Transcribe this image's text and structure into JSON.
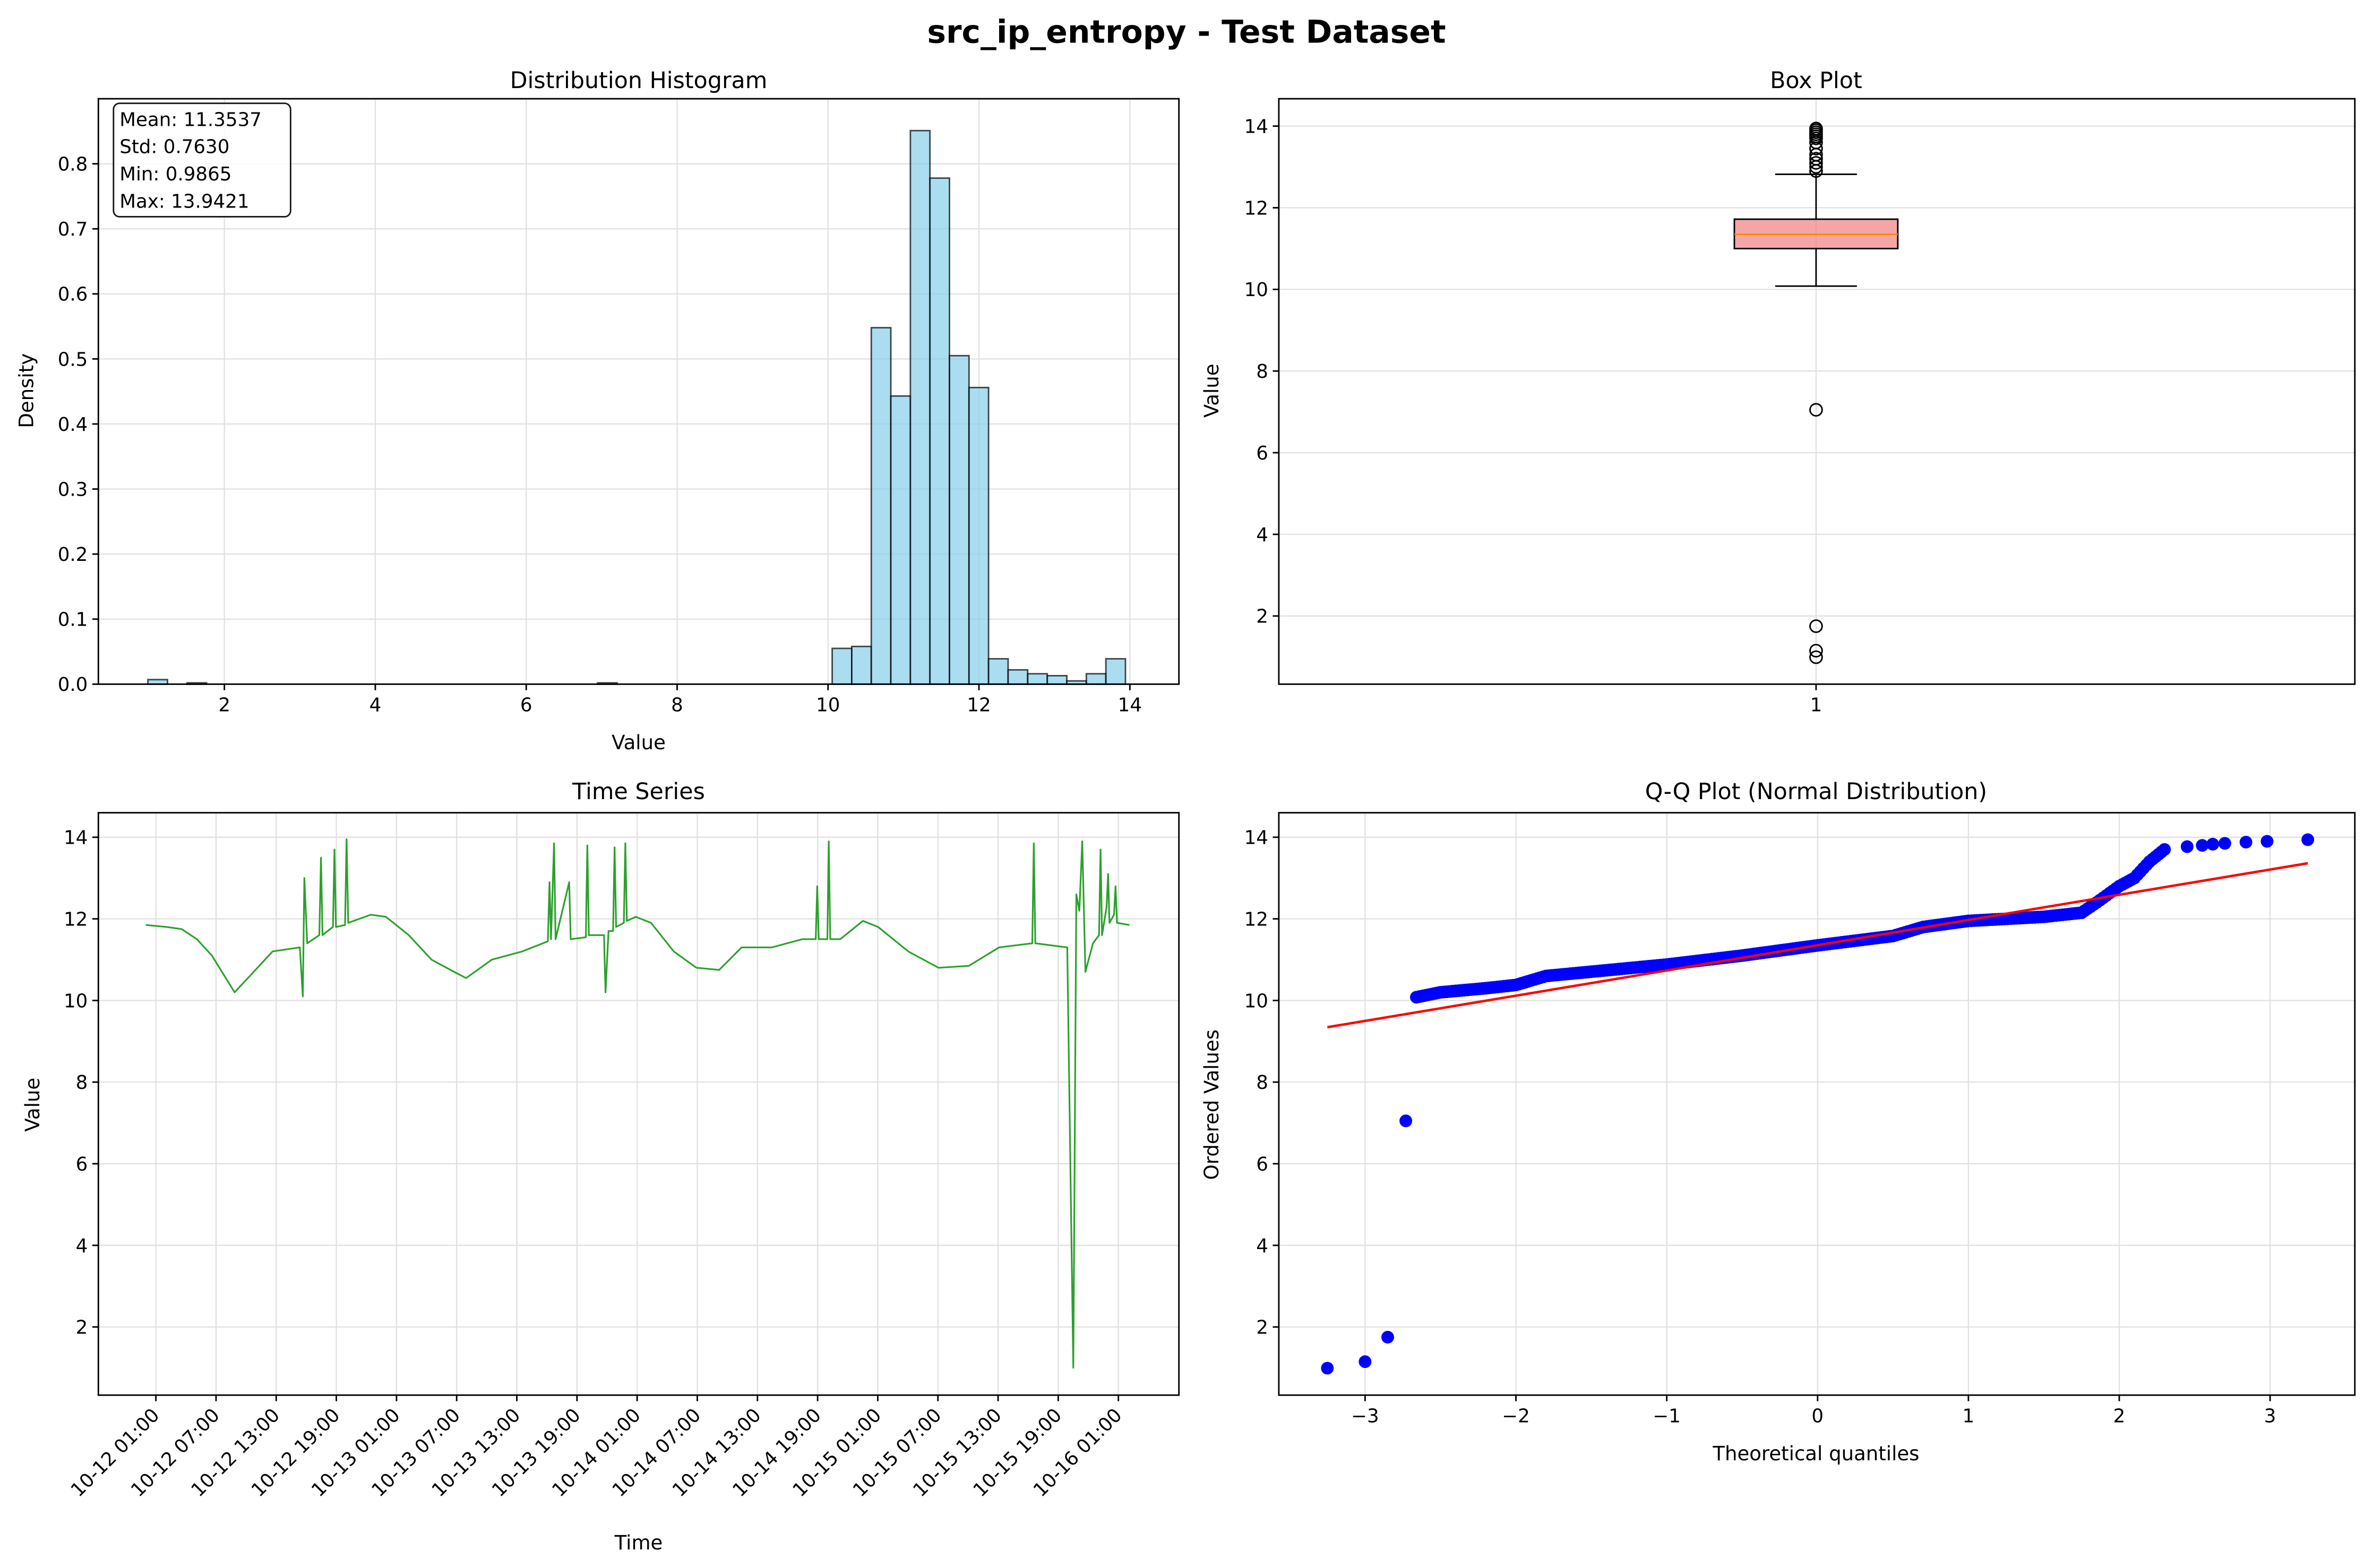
{
  "figure_title": "src_ip_entropy - Test Dataset",
  "chart_data": [
    {
      "type": "bar",
      "title": "Distribution Histogram",
      "xlabel": "Value",
      "ylabel": "Density",
      "xlim": [
        0.33,
        14.65
      ],
      "ylim": [
        0,
        0.9
      ],
      "xticks": [
        2,
        4,
        6,
        8,
        10,
        12,
        14
      ],
      "yticks": [
        0.0,
        0.1,
        0.2,
        0.3,
        0.4,
        0.5,
        0.6,
        0.7,
        0.8
      ],
      "grid": true,
      "bar_color": "#87ceeb",
      "bin_edges_start": 0.9865,
      "bin_width": 0.2591,
      "bins": [
        {
          "start": 0.9865,
          "density": 0.007
        },
        {
          "start": 1.5047,
          "density": 0.002
        },
        {
          "start": 6.9458,
          "density": 0.002
        },
        {
          "start": 10.055,
          "density": 0.055
        },
        {
          "start": 10.314,
          "density": 0.058
        },
        {
          "start": 10.573,
          "density": 0.548
        },
        {
          "start": 10.832,
          "density": 0.443
        },
        {
          "start": 11.091,
          "density": 0.851
        },
        {
          "start": 11.35,
          "density": 0.778
        },
        {
          "start": 11.609,
          "density": 0.505
        },
        {
          "start": 11.868,
          "density": 0.456
        },
        {
          "start": 12.127,
          "density": 0.039
        },
        {
          "start": 12.386,
          "density": 0.022
        },
        {
          "start": 12.646,
          "density": 0.016
        },
        {
          "start": 12.905,
          "density": 0.013
        },
        {
          "start": 13.164,
          "density": 0.005
        },
        {
          "start": 13.423,
          "density": 0.016
        },
        {
          "start": 13.682,
          "density": 0.039
        }
      ],
      "stats_box": [
        "Mean: 11.3537",
        "Std: 0.7630",
        "Min: 0.9865",
        "Max: 13.9421"
      ]
    },
    {
      "type": "box",
      "title": "Box Plot",
      "ylabel": "Value",
      "categories": [
        "1"
      ],
      "ylim": [
        0.33,
        14.67
      ],
      "yticks": [
        2,
        4,
        6,
        8,
        10,
        12,
        14
      ],
      "grid": true,
      "box_color": "#f08080",
      "median_color": "#ff8c00",
      "q1": 11.0,
      "median": 11.35,
      "q3": 11.72,
      "whisker_low": 10.08,
      "whisker_high": 12.82,
      "outliers": [
        12.9,
        13.0,
        13.1,
        13.2,
        13.3,
        13.45,
        13.6,
        13.7,
        13.75,
        13.8,
        13.85,
        13.9,
        13.94,
        7.05,
        1.75,
        1.15,
        0.99
      ]
    },
    {
      "type": "line",
      "title": "Time Series",
      "xlabel": "Time",
      "ylabel": "Value",
      "ylim": [
        0.33,
        14.6
      ],
      "yticks": [
        2,
        4,
        6,
        8,
        10,
        12,
        14
      ],
      "grid": true,
      "line_color": "#2ca02c",
      "xticks": [
        "10-12 01:00",
        "10-12 07:00",
        "10-12 13:00",
        "10-12 19:00",
        "10-13 01:00",
        "10-13 07:00",
        "10-13 13:00",
        "10-13 19:00",
        "10-14 01:00",
        "10-14 07:00",
        "10-14 13:00",
        "10-14 19:00",
        "10-15 01:00",
        "10-15 07:00",
        "10-15 13:00",
        "10-15 19:00",
        "10-16 01:00"
      ],
      "points": [
        [
          "10-12 00:00",
          11.85
        ],
        [
          "10-12 02:04",
          11.8
        ],
        [
          "10-12 03:34",
          11.75
        ],
        [
          "10-12 05:05",
          11.5
        ],
        [
          "10-12 06:35",
          11.1
        ],
        [
          "10-12 08:06",
          10.5
        ],
        [
          "10-12 08:51",
          10.2
        ],
        [
          "10-12 10:22",
          10.6
        ],
        [
          "10-12 12:38",
          11.2
        ],
        [
          "10-12 15:21",
          11.3
        ],
        [
          "10-12 15:39",
          10.1
        ],
        [
          "10-12 15:48",
          13.0
        ],
        [
          "10-12 16:06",
          11.4
        ],
        [
          "10-12 17:18",
          11.6
        ],
        [
          "10-12 17:28",
          13.5
        ],
        [
          "10-12 17:37",
          11.6
        ],
        [
          "10-12 18:40",
          11.8
        ],
        [
          "10-12 18:49",
          13.7
        ],
        [
          "10-12 18:58",
          11.8
        ],
        [
          "10-12 19:52",
          11.85
        ],
        [
          "10-12 20:01",
          13.95
        ],
        [
          "10-12 20:11",
          11.9
        ],
        [
          "10-12 22:26",
          12.1
        ],
        [
          "10-12 23:57",
          12.05
        ],
        [
          "10-13 02:13",
          11.6
        ],
        [
          "10-13 04:29",
          11.0
        ],
        [
          "10-13 06:45",
          10.7
        ],
        [
          "10-13 07:57",
          10.55
        ],
        [
          "10-13 10:31",
          11.0
        ],
        [
          "10-13 13:32",
          11.2
        ],
        [
          "10-13 16:06",
          11.45
        ],
        [
          "10-13 16:16",
          12.9
        ],
        [
          "10-13 16:25",
          11.5
        ],
        [
          "10-13 16:43",
          13.85
        ],
        [
          "10-13 16:52",
          11.5
        ],
        [
          "10-13 18:13",
          12.9
        ],
        [
          "10-13 18:22",
          11.5
        ],
        [
          "10-13 19:53",
          11.55
        ],
        [
          "10-13 20:02",
          13.8
        ],
        [
          "10-13 20:11",
          11.6
        ],
        [
          "10-13 21:42",
          11.6
        ],
        [
          "10-13 21:51",
          10.2
        ],
        [
          "10-13 22:09",
          11.7
        ],
        [
          "10-13 22:36",
          11.7
        ],
        [
          "10-13 22:45",
          13.75
        ],
        [
          "10-13 22:54",
          11.8
        ],
        [
          "10-13 23:40",
          11.9
        ],
        [
          "10-13 23:49",
          13.85
        ],
        [
          "10-13 23:58",
          11.95
        ],
        [
          "10-14 00:52",
          12.05
        ],
        [
          "10-14 02:23",
          11.9
        ],
        [
          "10-14 04:39",
          11.2
        ],
        [
          "10-14 06:55",
          10.8
        ],
        [
          "10-14 09:11",
          10.75
        ],
        [
          "10-14 11:26",
          11.3
        ],
        [
          "10-14 14:27",
          11.3
        ],
        [
          "10-14 17:28",
          11.5
        ],
        [
          "10-14 18:49",
          11.5
        ],
        [
          "10-14 18:58",
          12.8
        ],
        [
          "10-14 19:07",
          11.5
        ],
        [
          "10-14 19:58",
          11.5
        ],
        [
          "10-14 20:07",
          13.9
        ],
        [
          "10-14 20:16",
          11.5
        ],
        [
          "10-14 21:15",
          11.5
        ],
        [
          "10-14 23:31",
          11.95
        ],
        [
          "10-15 01:02",
          11.8
        ],
        [
          "10-15 04:03",
          11.2
        ],
        [
          "10-15 07:04",
          10.8
        ],
        [
          "10-15 10:05",
          10.85
        ],
        [
          "10-15 13:06",
          11.3
        ],
        [
          "10-15 16:25",
          11.4
        ],
        [
          "10-15 16:34",
          13.85
        ],
        [
          "10-15 16:43",
          11.4
        ],
        [
          "10-15 19:54",
          11.3
        ],
        [
          "10-15 20:30",
          1.0
        ],
        [
          "10-15 20:48",
          12.6
        ],
        [
          "10-15 21:06",
          12.2
        ],
        [
          "10-15 21:24",
          13.9
        ],
        [
          "10-15 21:43",
          10.7
        ],
        [
          "10-15 22:28",
          11.4
        ],
        [
          "10-15 23:04",
          11.6
        ],
        [
          "10-15 23:13",
          13.7
        ],
        [
          "10-15 23:22",
          11.6
        ],
        [
          "10-15 23:49",
          12.3
        ],
        [
          "10-15 23:58",
          13.1
        ],
        [
          "10-16 00:07",
          11.9
        ],
        [
          "10-16 00:34",
          12.1
        ],
        [
          "10-16 00:43",
          12.8
        ],
        [
          "10-16 00:52",
          11.9
        ],
        [
          "10-16 02:06",
          11.85
        ]
      ]
    },
    {
      "type": "scatter",
      "title": "Q-Q Plot (Normal Distribution)",
      "xlabel": "Theoretical quantiles",
      "ylabel": "Ordered Values",
      "xlim": [
        -3.57,
        3.57
      ],
      "ylim": [
        0.33,
        14.6
      ],
      "xticks": [
        -3,
        -2,
        -1,
        0,
        1,
        2,
        3
      ],
      "yticks": [
        2,
        4,
        6,
        8,
        10,
        12,
        14
      ],
      "grid": true,
      "point_color": "#0000ff",
      "line_color": "#ff0000",
      "fit_line": {
        "slope": 0.618,
        "intercept": 11.354,
        "x": [
          -3.25,
          3.25
        ]
      },
      "points": [
        [
          -3.25,
          0.99
        ],
        [
          -3.0,
          1.15
        ],
        [
          -2.85,
          1.75
        ],
        [
          -2.73,
          7.05
        ],
        [
          -2.66,
          10.08
        ],
        [
          -2.5,
          10.2
        ],
        [
          -2.2,
          10.3
        ],
        [
          -2.0,
          10.38
        ],
        [
          -1.8,
          10.6
        ],
        [
          -1.0,
          10.88
        ],
        [
          -0.5,
          11.1
        ],
        [
          0,
          11.35
        ],
        [
          0.5,
          11.58
        ],
        [
          0.7,
          11.8
        ],
        [
          1.0,
          11.95
        ],
        [
          1.5,
          12.05
        ],
        [
          1.75,
          12.15
        ],
        [
          1.85,
          12.4
        ],
        [
          2.0,
          12.8
        ],
        [
          2.1,
          13.0
        ],
        [
          2.2,
          13.4
        ],
        [
          2.3,
          13.7
        ],
        [
          2.45,
          13.77
        ],
        [
          2.55,
          13.8
        ],
        [
          2.62,
          13.83
        ],
        [
          2.7,
          13.85
        ],
        [
          2.84,
          13.88
        ],
        [
          2.98,
          13.9
        ],
        [
          3.25,
          13.94
        ]
      ]
    }
  ]
}
